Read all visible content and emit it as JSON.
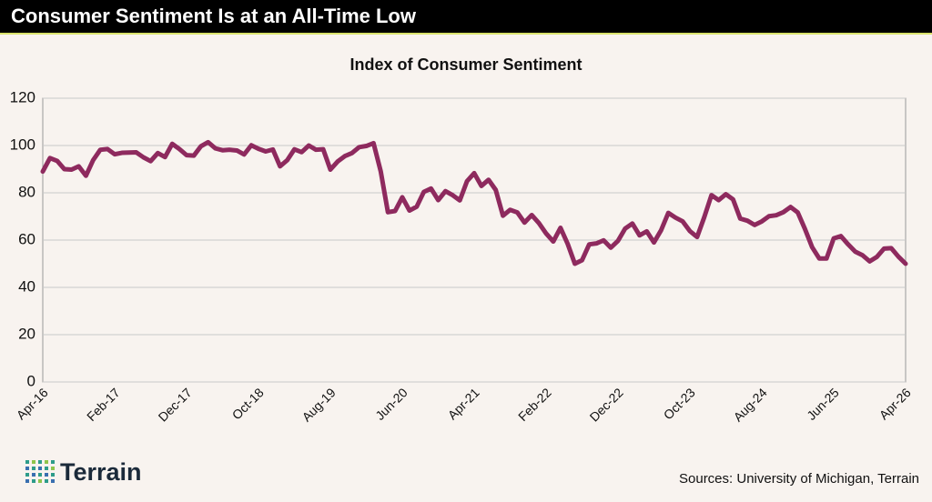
{
  "header": {
    "title": "Consumer Sentiment Is at an All-Time Low"
  },
  "chart_data": {
    "type": "line",
    "title": "Index of Consumer Sentiment",
    "categories": [
      "Apr-16",
      null,
      null,
      null,
      null,
      null,
      null,
      null,
      null,
      null,
      "Feb-17",
      null,
      null,
      null,
      null,
      null,
      null,
      null,
      null,
      null,
      "Dec-17",
      null,
      null,
      null,
      null,
      null,
      null,
      null,
      null,
      null,
      "Oct-18",
      null,
      null,
      null,
      null,
      null,
      null,
      null,
      null,
      null,
      "Aug-19",
      null,
      null,
      null,
      null,
      null,
      null,
      null,
      null,
      null,
      "Jun-20",
      null,
      null,
      null,
      null,
      null,
      null,
      null,
      null,
      null,
      "Apr-21",
      null,
      null,
      null,
      null,
      null,
      null,
      null,
      null,
      null,
      "Feb-22",
      null,
      null,
      null,
      null,
      null,
      null,
      null,
      null,
      null,
      "Dec-22",
      null,
      null,
      null,
      null,
      null,
      null,
      null,
      null,
      null,
      "Oct-23",
      null,
      null,
      null,
      null,
      null,
      null,
      null,
      null,
      null,
      "Aug-24",
      null,
      null,
      null,
      null,
      null,
      null,
      null,
      null,
      null,
      "Jun-25",
      null,
      null,
      null,
      null,
      null,
      null,
      null,
      null,
      null,
      "Apr-26"
    ],
    "values": [
      89.0,
      94.7,
      93.5,
      90.0,
      89.8,
      91.2,
      87.2,
      93.8,
      98.2,
      98.5,
      96.3,
      96.9,
      97.0,
      97.1,
      95.0,
      93.4,
      96.8,
      95.1,
      100.7,
      98.5,
      95.9,
      95.7,
      99.7,
      101.4,
      98.8,
      98.0,
      98.2,
      97.9,
      96.2,
      100.1,
      98.6,
      97.5,
      98.3,
      91.2,
      93.8,
      98.4,
      97.2,
      100.0,
      98.2,
      98.4,
      89.8,
      93.2,
      95.5,
      96.8,
      99.3,
      99.8,
      101.0,
      89.1,
      71.8,
      72.3,
      78.1,
      72.5,
      74.1,
      80.4,
      81.8,
      76.9,
      80.7,
      79.0,
      76.8,
      84.9,
      88.3,
      82.9,
      85.5,
      81.2,
      70.3,
      72.8,
      71.7,
      67.4,
      70.6,
      67.2,
      62.8,
      59.4,
      65.2,
      58.4,
      50.0,
      51.5,
      58.2,
      58.6,
      59.9,
      56.8,
      59.7,
      64.9,
      67.0,
      62.0,
      63.7,
      59.0,
      64.2,
      71.5,
      69.5,
      67.9,
      63.8,
      61.3,
      69.7,
      79.0,
      76.9,
      79.4,
      77.2,
      69.1,
      68.2,
      66.4,
      67.9,
      70.1,
      70.5,
      71.8,
      74.0,
      71.7,
      64.7,
      57.0,
      52.2,
      52.2,
      60.7,
      61.7,
      58.2,
      55.1,
      53.6,
      51.0,
      52.9,
      56.4,
      56.6,
      53.0,
      50.0
    ],
    "color": "#8e2a5e",
    "ylim": [
      0,
      120
    ],
    "yticks": [
      0,
      20,
      40,
      60,
      80,
      100,
      120
    ],
    "grid": true
  },
  "footer": {
    "logo": "Terrain",
    "sources": "Sources: University of Michigan, Terrain"
  }
}
